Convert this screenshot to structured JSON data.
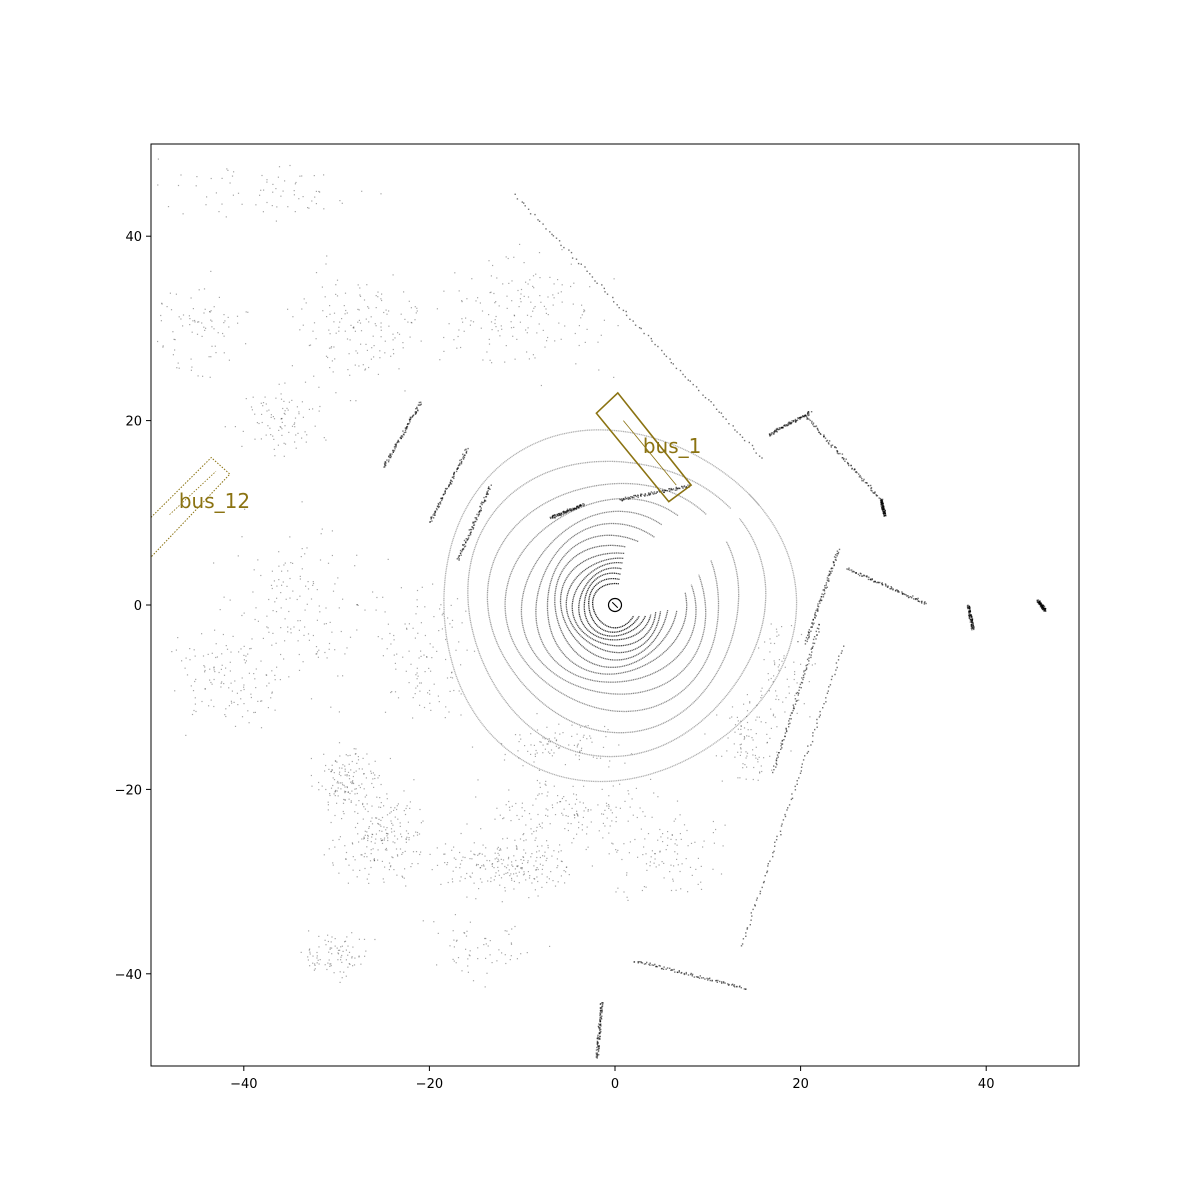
{
  "chart_data": {
    "type": "scatter",
    "title": "",
    "xlabel": "",
    "ylabel": "",
    "xlim": [
      -50,
      50
    ],
    "ylim": [
      -50,
      50
    ],
    "grid": false,
    "x_ticks": [
      -40,
      -20,
      0,
      20,
      40
    ],
    "y_ticks": [
      -40,
      -20,
      0,
      20,
      40
    ],
    "x_tick_labels": [
      "−40",
      "−20",
      "0",
      "20",
      "40"
    ],
    "y_tick_labels": [
      "−40",
      "−20",
      "0",
      "20",
      "40"
    ],
    "point_color": "#000000",
    "box_color": "#8b7312",
    "ego": {
      "center": [
        0,
        0
      ],
      "radius": 0.7
    },
    "lidar_rings": {
      "center": [
        0,
        0
      ],
      "radii": [
        2.4,
        2.9,
        3.4,
        3.9,
        4.5,
        5.1,
        5.8,
        6.6,
        7.5,
        8.6,
        9.9,
        11.5,
        13.5,
        16.0,
        19.0
      ],
      "start_deg": [
        80,
        80,
        80,
        80,
        80,
        80,
        80,
        80,
        70,
        60,
        60,
        55,
        45,
        40,
        35
      ],
      "end_deg": [
        330,
        335,
        340,
        345,
        350,
        352,
        355,
        355,
        370,
        375,
        380,
        385,
        390,
        395,
        400
      ]
    },
    "point_segments": [
      {
        "from": [
          -10.8,
          44.5
        ],
        "to": [
          15.8,
          16.0
        ]
      },
      {
        "from": [
          16.5,
          18.5
        ],
        "to": [
          21.0,
          21.0
        ]
      },
      {
        "from": [
          20.5,
          20.5
        ],
        "to": [
          28.6,
          11.5
        ]
      },
      {
        "from": [
          28.6,
          11.5
        ],
        "to": [
          29.0,
          9.8
        ]
      },
      {
        "from": [
          25.0,
          4.0
        ],
        "to": [
          33.5,
          0.2
        ]
      },
      {
        "from": [
          24.0,
          6.0
        ],
        "to": [
          20.5,
          -4.0
        ]
      },
      {
        "from": [
          24.5,
          -4.5
        ],
        "to": [
          13.5,
          -37.0
        ]
      },
      {
        "from": [
          22.0,
          -2.0
        ],
        "to": [
          17.0,
          -18.0
        ]
      },
      {
        "from": [
          2.0,
          -38.5
        ],
        "to": [
          14.0,
          -41.5
        ]
      },
      {
        "from": [
          -1.5,
          -43.0
        ],
        "to": [
          -2.0,
          -49.0
        ]
      },
      {
        "from": [
          -21.0,
          22.0
        ],
        "to": [
          -25.0,
          15.0
        ]
      },
      {
        "from": [
          -16.0,
          17.0
        ],
        "to": [
          -20.0,
          9.0
        ]
      },
      {
        "from": [
          -13.5,
          13.0
        ],
        "to": [
          -17.0,
          5.0
        ]
      },
      {
        "from": [
          45.5,
          0.5
        ],
        "to": [
          46.3,
          -0.5
        ]
      },
      {
        "from": [
          38.0,
          0.0
        ],
        "to": [
          38.5,
          -2.5
        ]
      },
      {
        "from": [
          -7.0,
          9.5
        ],
        "to": [
          -3.5,
          11.0
        ]
      },
      {
        "from": [
          0.5,
          11.5
        ],
        "to": [
          8.0,
          13.0
        ]
      }
    ],
    "point_clusters": [
      {
        "center": [
          -12,
          -28
        ],
        "spread": [
          6,
          2.5
        ],
        "count": 220
      },
      {
        "center": [
          -25,
          -25
        ],
        "spread": [
          4,
          4
        ],
        "count": 200
      },
      {
        "center": [
          -29,
          -19
        ],
        "spread": [
          3,
          3
        ],
        "count": 140
      },
      {
        "center": [
          -30,
          -38
        ],
        "spread": [
          3,
          2
        ],
        "count": 90
      },
      {
        "center": [
          -42,
          -8
        ],
        "spread": [
          5,
          4
        ],
        "count": 120
      },
      {
        "center": [
          -27,
          30
        ],
        "spread": [
          6,
          5
        ],
        "count": 150
      },
      {
        "center": [
          -10,
          32
        ],
        "spread": [
          8,
          6
        ],
        "count": 160
      },
      {
        "center": [
          -36,
          20
        ],
        "spread": [
          4,
          3
        ],
        "count": 90
      },
      {
        "center": [
          -45,
          30
        ],
        "spread": [
          4,
          4
        ],
        "count": 80
      },
      {
        "center": [
          -5,
          -22
        ],
        "spread": [
          8,
          3
        ],
        "count": 150
      },
      {
        "center": [
          5,
          -27
        ],
        "spread": [
          6,
          4
        ],
        "count": 110
      },
      {
        "center": [
          -34,
          0
        ],
        "spread": [
          8,
          8
        ],
        "count": 160
      },
      {
        "center": [
          -20,
          -5
        ],
        "spread": [
          4,
          6
        ],
        "count": 110
      },
      {
        "center": [
          14,
          -15
        ],
        "spread": [
          3,
          4
        ],
        "count": 90
      },
      {
        "center": [
          -6,
          -15
        ],
        "spread": [
          6,
          2
        ],
        "count": 90
      },
      {
        "center": [
          -38,
          45
        ],
        "spread": [
          10,
          3
        ],
        "count": 70
      },
      {
        "center": [
          -15,
          -37
        ],
        "spread": [
          5,
          3
        ],
        "count": 60
      },
      {
        "center": [
          18,
          -7
        ],
        "spread": [
          3,
          5
        ],
        "count": 70
      }
    ],
    "boxes": [
      {
        "label": "bus_1",
        "corners": [
          [
            -2.0,
            20.8
          ],
          [
            0.3,
            23.0
          ],
          [
            8.2,
            13.0
          ],
          [
            5.8,
            11.2
          ]
        ],
        "heading_marker": [
          [
            0.9,
            20.0
          ],
          [
            6.6,
            13.0
          ]
        ],
        "label_at": [
          3.0,
          16.5
        ],
        "style": "solid"
      },
      {
        "label": "bus_12",
        "corners": [
          [
            -50.0,
            9.5
          ],
          [
            -43.5,
            16.0
          ],
          [
            -41.5,
            14.2
          ],
          [
            -50.0,
            5.2
          ]
        ],
        "heading_marker": [
          [
            -48.0,
            9.8
          ],
          [
            -43.0,
            14.5
          ]
        ],
        "label_at": [
          -47.0,
          10.5
        ],
        "style": "dotted"
      }
    ]
  }
}
